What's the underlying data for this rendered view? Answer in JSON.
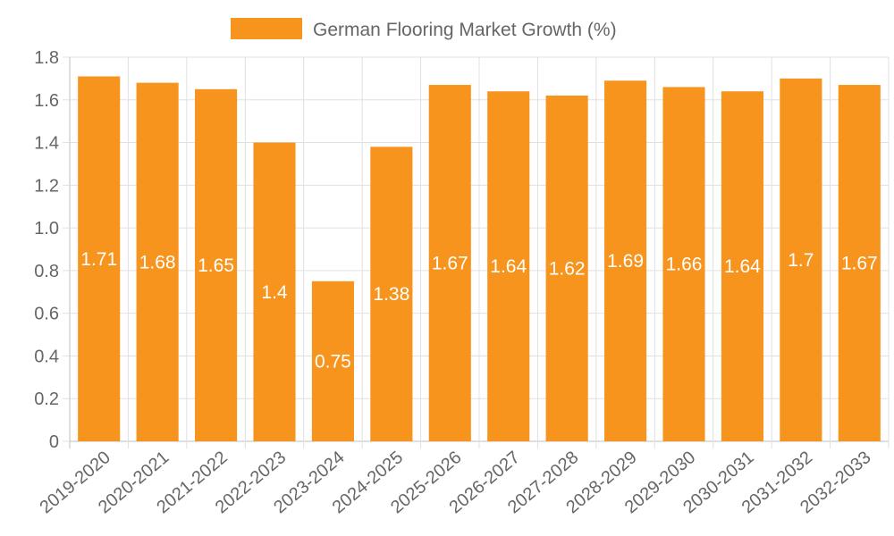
{
  "chart_data": {
    "type": "bar",
    "title": "",
    "xlabel": "",
    "ylabel": "",
    "legend": {
      "label": "German Flooring Market Growth (%)",
      "position": "top"
    },
    "categories": [
      "2019-2020",
      "2020-2021",
      "2021-2022",
      "2022-2023",
      "2023-2024",
      "2024-2025",
      "2025-2026",
      "2026-2027",
      "2027-2028",
      "2028-2029",
      "2029-2030",
      "2030-2031",
      "2031-2032",
      "2032-2033"
    ],
    "values": [
      1.71,
      1.68,
      1.65,
      1.4,
      0.75,
      1.38,
      1.67,
      1.64,
      1.62,
      1.69,
      1.66,
      1.64,
      1.7,
      1.67
    ],
    "data_labels": [
      "1.71",
      "1.68",
      "1.65",
      "1.4",
      "0.75",
      "1.38",
      "1.67",
      "1.64",
      "1.62",
      "1.69",
      "1.66",
      "1.64",
      "1.7",
      "1.67"
    ],
    "ylim": [
      0,
      1.8
    ],
    "yticks": [
      "0",
      "0.2",
      "0.4",
      "0.6",
      "0.8",
      "1.0",
      "1.2",
      "1.4",
      "1.6",
      "1.8"
    ],
    "grid": true,
    "colors": {
      "bar": "#f7941d",
      "grid": "#e0e0e0",
      "axis": "#bfbfbf",
      "text": "#666666",
      "label": "#ffffff"
    }
  }
}
